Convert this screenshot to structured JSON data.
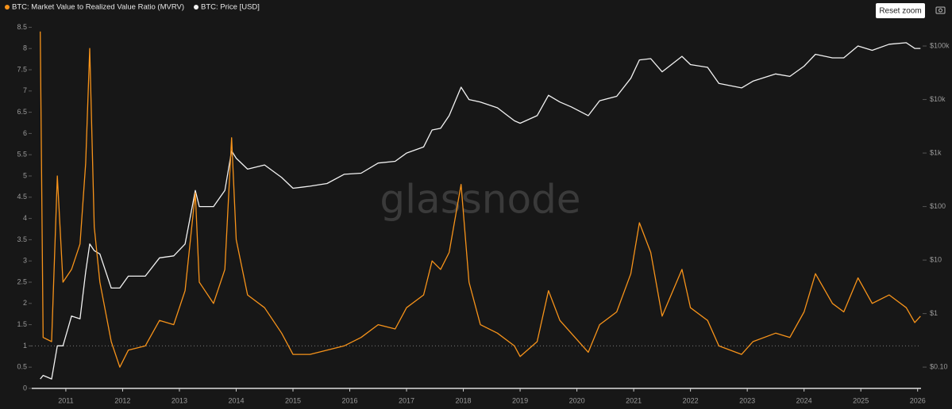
{
  "chart_data": {
    "type": "line",
    "watermark": "glassnode",
    "reset_zoom": "Reset zoom",
    "x": [
      2010.55,
      2010.6,
      2010.75,
      2010.85,
      2010.95,
      2011.1,
      2011.25,
      2011.35,
      2011.42,
      2011.5,
      2011.6,
      2011.8,
      2011.95,
      2012.1,
      2012.4,
      2012.65,
      2012.9,
      2013.1,
      2013.28,
      2013.35,
      2013.6,
      2013.8,
      2013.92,
      2014.0,
      2014.2,
      2014.5,
      2014.8,
      2015.0,
      2015.3,
      2015.6,
      2015.9,
      2016.2,
      2016.5,
      2016.8,
      2017.0,
      2017.3,
      2017.45,
      2017.6,
      2017.75,
      2017.96,
      2018.1,
      2018.3,
      2018.6,
      2018.9,
      2019.0,
      2019.3,
      2019.5,
      2019.7,
      2019.9,
      2020.2,
      2020.4,
      2020.7,
      2020.95,
      2021.1,
      2021.3,
      2021.5,
      2021.85,
      2022.0,
      2022.3,
      2022.5,
      2022.9,
      2023.1,
      2023.5,
      2023.75,
      2024.0,
      2024.2,
      2024.5,
      2024.7,
      2024.95,
      2025.2,
      2025.5,
      2025.8,
      2025.95,
      2026.05
    ],
    "series": [
      {
        "name": "BTC: Market Value to Realized Value Ratio (MVRV)",
        "color": "#f7931a",
        "values": [
          8.4,
          1.2,
          1.1,
          5.0,
          2.5,
          2.8,
          3.4,
          5.3,
          8.0,
          3.8,
          2.5,
          1.1,
          0.5,
          0.9,
          1.0,
          1.6,
          1.5,
          2.3,
          4.6,
          2.5,
          2.0,
          2.8,
          5.9,
          3.5,
          2.2,
          1.9,
          1.3,
          0.8,
          0.8,
          0.9,
          1.0,
          1.2,
          1.5,
          1.4,
          1.9,
          2.2,
          3.0,
          2.8,
          3.2,
          4.8,
          2.5,
          1.5,
          1.3,
          1.0,
          0.75,
          1.1,
          2.3,
          1.6,
          1.3,
          0.85,
          1.5,
          1.8,
          2.7,
          3.9,
          3.2,
          1.7,
          2.8,
          1.9,
          1.6,
          1.0,
          0.8,
          1.1,
          1.3,
          1.2,
          1.8,
          2.7,
          2.0,
          1.8,
          2.6,
          2.0,
          2.2,
          1.9,
          1.55,
          1.7
        ]
      },
      {
        "name": "BTC: Price [USD]",
        "color": "#f2f2f2",
        "axis": "y2",
        "values": [
          0.06,
          0.07,
          0.06,
          0.25,
          0.25,
          0.9,
          0.8,
          6,
          20,
          15,
          13,
          3,
          3,
          5,
          5,
          11,
          12,
          20,
          200,
          100,
          100,
          200,
          1100,
          800,
          500,
          600,
          350,
          220,
          240,
          270,
          400,
          420,
          650,
          700,
          1000,
          1300,
          2700,
          2900,
          5000,
          17000,
          10000,
          9000,
          7000,
          4000,
          3600,
          5000,
          12000,
          9000,
          7300,
          5000,
          9500,
          11500,
          25000,
          55000,
          58000,
          33000,
          64000,
          45000,
          40000,
          20000,
          16500,
          22000,
          30000,
          27000,
          42000,
          70000,
          60000,
          60000,
          100000,
          83000,
          108000,
          115000,
          90000,
          90000
        ]
      }
    ],
    "xlim": [
      2010.4,
      2026.06
    ],
    "xticks": [
      2011,
      2012,
      2013,
      2014,
      2015,
      2016,
      2017,
      2018,
      2019,
      2020,
      2021,
      2022,
      2023,
      2024,
      2025,
      2026
    ],
    "ylim": [
      0,
      8.5
    ],
    "yticks": [
      0,
      0.5,
      1,
      1.5,
      2,
      2.5,
      3,
      3.5,
      4,
      4.5,
      5,
      5.5,
      6,
      6.5,
      7,
      7.5,
      8,
      8.5
    ],
    "y2lim": [
      0.04,
      224000
    ],
    "y2log": true,
    "y2ticks": [
      {
        "value": 0.1,
        "label": "$0.10"
      },
      {
        "value": 1,
        "label": "$1"
      },
      {
        "value": 10,
        "label": "$10"
      },
      {
        "value": 100,
        "label": "$100"
      },
      {
        "value": 1000,
        "label": "$1k"
      },
      {
        "value": 10000,
        "label": "$10k"
      },
      {
        "value": 100000,
        "label": "$100k"
      }
    ],
    "reference_y": 1,
    "legend": "top-left"
  }
}
